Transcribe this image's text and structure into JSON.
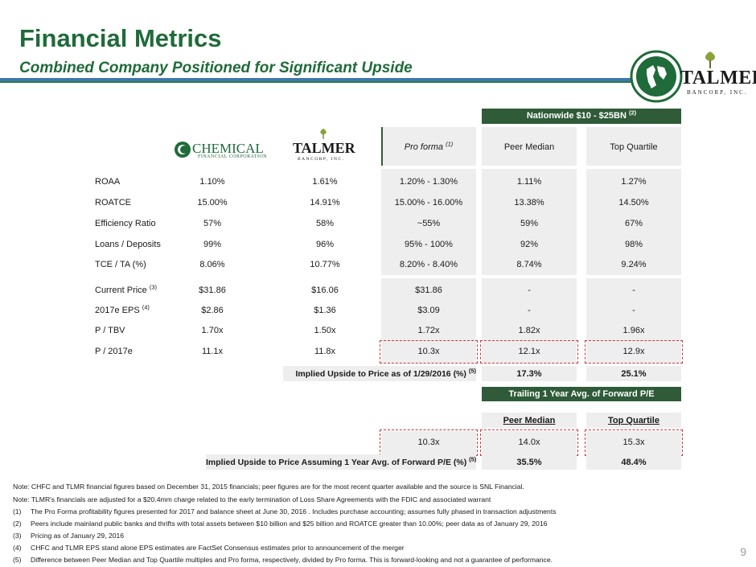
{
  "header": {
    "title": "Financial Metrics",
    "subtitle": "Combined Company Positioned for Significant Upside"
  },
  "logos": {
    "chemical": {
      "name": "CHEMICAL",
      "sub": "FINANCIAL CORPORATION"
    },
    "talmer": {
      "name": "TALMER",
      "sub": "BANCORP, INC."
    }
  },
  "table": {
    "nationwide_header": "Nationwide $10 - $25BN",
    "nationwide_note": "(2)",
    "proforma_label": "Pro forma",
    "proforma_note": "(1)",
    "peer_median": "Peer Median",
    "top_quartile": "Top Quartile",
    "rows": [
      {
        "label": "ROAA",
        "note": "",
        "chemical": "1.10%",
        "talmer": "1.61%",
        "proforma": "1.20% - 1.30%",
        "peer": "1.11%",
        "top": "1.27%"
      },
      {
        "label": "ROATCE",
        "note": "",
        "chemical": "15.00%",
        "talmer": "14.91%",
        "proforma": "15.00% - 16.00%",
        "peer": "13.38%",
        "top": "14.50%"
      },
      {
        "label": "Efficiency Ratio",
        "note": "",
        "chemical": "57%",
        "talmer": "58%",
        "proforma": "~55%",
        "peer": "59%",
        "top": "67%"
      },
      {
        "label": "Loans / Deposits",
        "note": "",
        "chemical": "99%",
        "talmer": "96%",
        "proforma": "95% - 100%",
        "peer": "92%",
        "top": "98%"
      },
      {
        "label": "TCE / TA (%)",
        "note": "",
        "chemical": "8.06%",
        "talmer": "10.77%",
        "proforma": "8.20% - 8.40%",
        "peer": "8.74%",
        "top": "9.24%"
      },
      {
        "label": "Current Price",
        "note": "(3)",
        "chemical": "$31.86",
        "talmer": "$16.06",
        "proforma": "$31.86",
        "peer": "-",
        "top": "-"
      },
      {
        "label": "2017e EPS",
        "note": "(4)",
        "chemical": "$2.86",
        "talmer": "$1.36",
        "proforma": "$3.09",
        "peer": "-",
        "top": "-"
      },
      {
        "label": "P / TBV",
        "note": "",
        "chemical": "1.70x",
        "talmer": "1.50x",
        "proforma": "1.72x",
        "peer": "1.82x",
        "top": "1.96x"
      },
      {
        "label": "P / 2017e",
        "note": "",
        "chemical": "11.1x",
        "talmer": "11.8x",
        "proforma": "10.3x",
        "peer": "12.1x",
        "top": "12.9x"
      }
    ],
    "implied_upside": {
      "label": "Implied Upside to Price as of 1/29/2016 (%)",
      "note": "(5)",
      "peer": "17.3%",
      "top": "25.1%"
    }
  },
  "trailing": {
    "header": "Trailing 1 Year Avg. of Forward P/E",
    "peer_median": "Peer Median",
    "top_quartile": "Top Quartile",
    "proforma": "10.3x",
    "peer": "14.0x",
    "top": "15.3x",
    "upside_label": "Implied Upside to Price Assuming 1 Year Avg. of Forward P/E (%)",
    "upside_note": "(5)",
    "upside_peer": "35.5%",
    "upside_top": "48.4%"
  },
  "notes": [
    {
      "num": "",
      "text": "Note: CHFC and TLMR financial figures based on December 31, 2015 financials; peer figures are for the most recent quarter available and the source is SNL Financial."
    },
    {
      "num": "",
      "text": "Note: TLMR's financials are adjusted for a $20.4mm charge related to the early termination of Loss  Share Agreements with the FDIC and associated warrant"
    },
    {
      "num": "(1)",
      "text": "The Pro Forma profitability figures presented for 2017 and balance sheet at June 30, 2016 .  Includes purchase accounting; assumes fully phased in transaction adjustments"
    },
    {
      "num": "(2)",
      "text": "Peers include mainland public banks and thrifts  with total assets between $10 billion and $25 billion and ROATCE greater than 10.00%; peer data as of January 29, 2016"
    },
    {
      "num": "(3)",
      "text": "Pricing as of January 29, 2016"
    },
    {
      "num": "(4)",
      "text": "CHFC and TLMR EPS stand alone EPS estimates are FactSet Consensus estimates prior to announcement of the merger"
    },
    {
      "num": "(5)",
      "text": "Difference between Peer Median and Top Quartile multiples and Pro forma, respectively, divided by Pro forma.  This is forward-looking and not a guarantee of performance."
    }
  ],
  "page_number": "9",
  "colors": {
    "brand_green": "#1f6b3a",
    "header_bar": "#2f5b38",
    "rule_blue": "#3f77b3",
    "dash_red": "#c43a3a"
  }
}
